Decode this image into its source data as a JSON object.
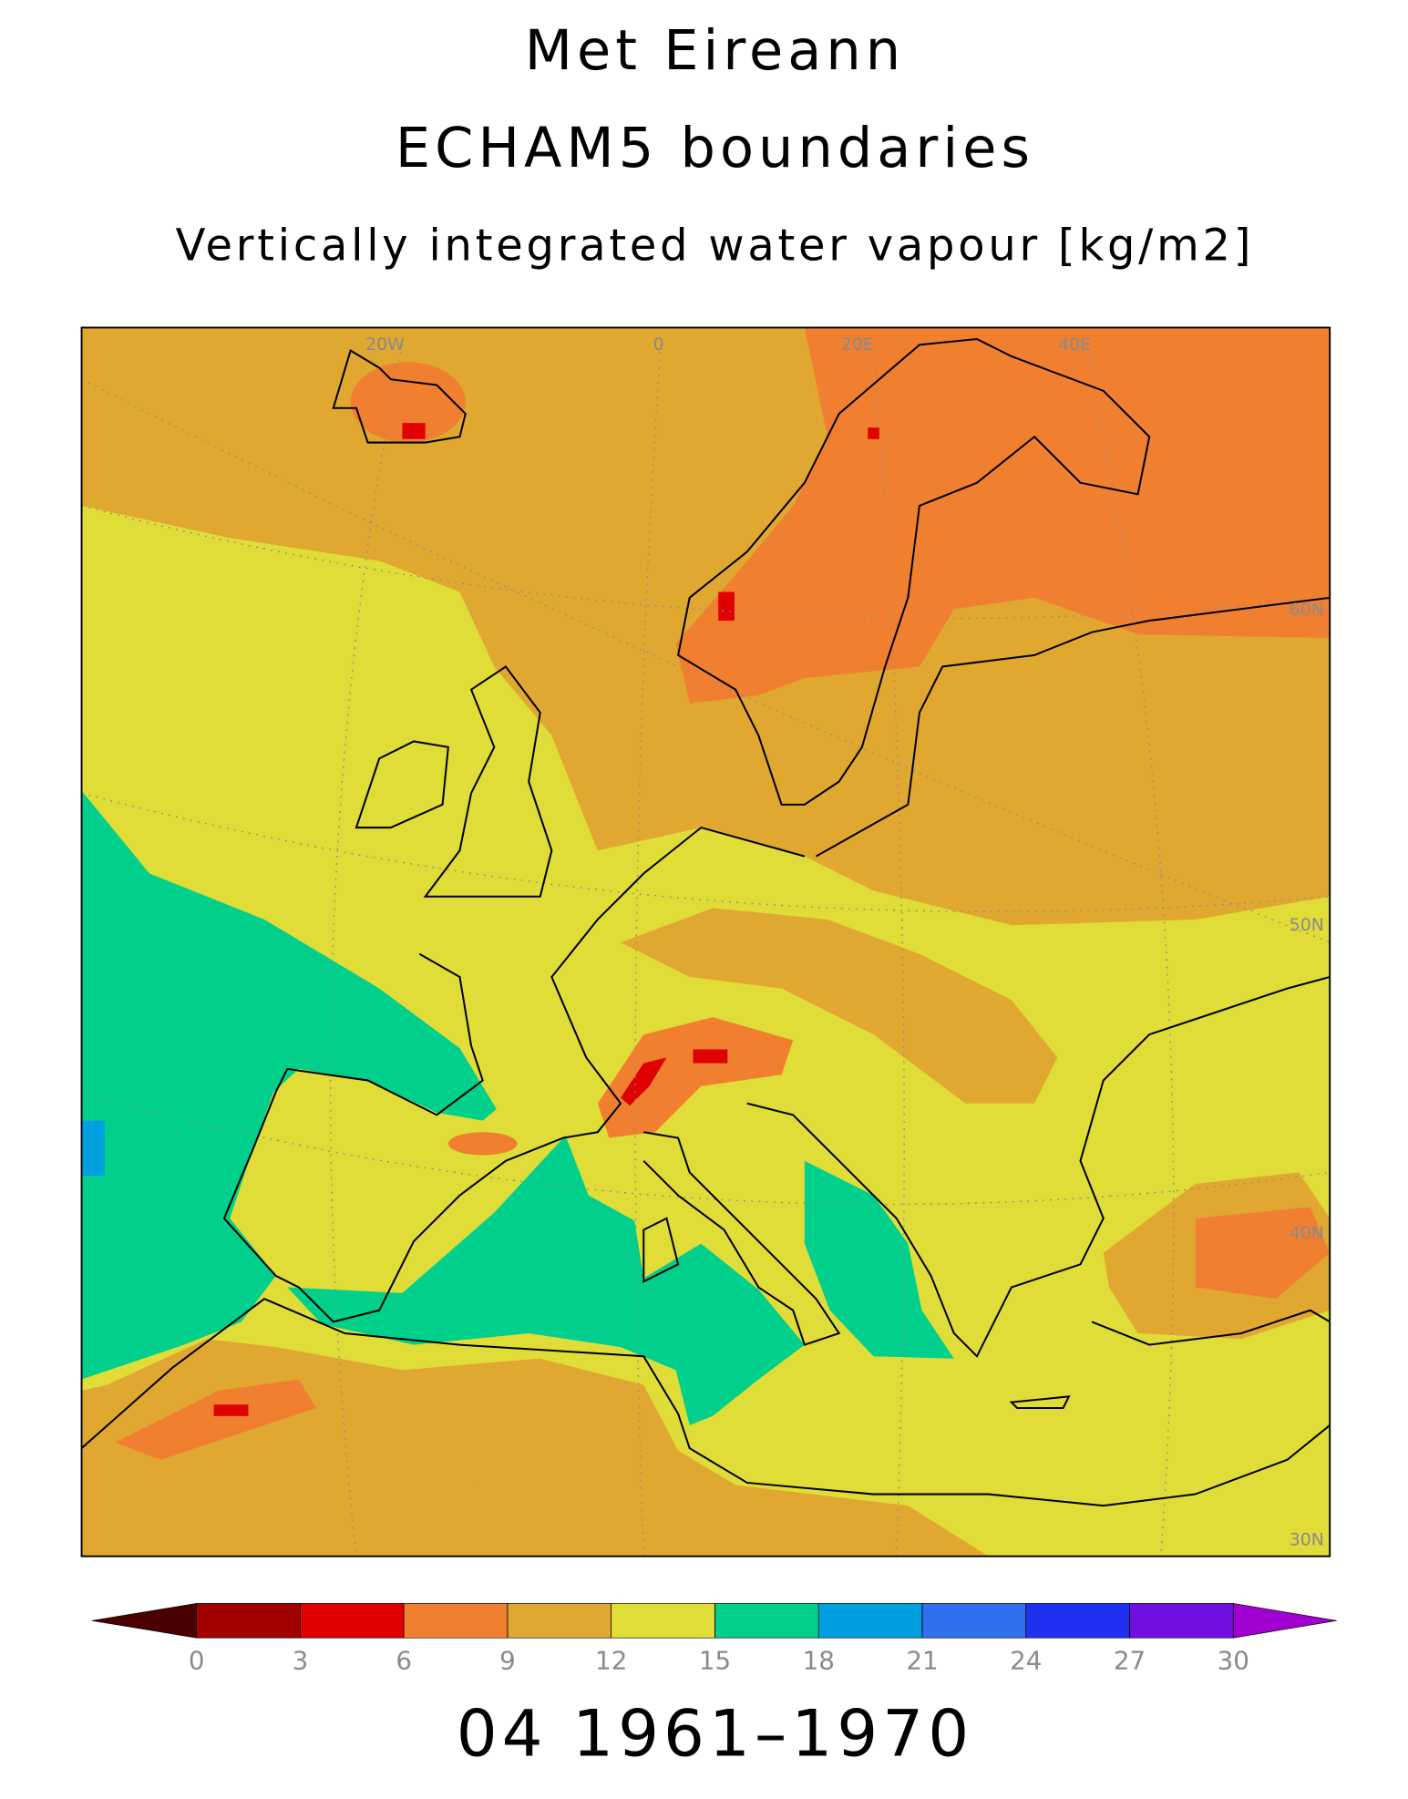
{
  "header": {
    "title": "Met Eireann",
    "subtitle": "ECHAM5 boundaries",
    "variable": "Vertically integrated water vapour [kg/m2]"
  },
  "map": {
    "lon_labels": [
      "20W",
      "0",
      "20E",
      "40E"
    ],
    "lat_labels": [
      "60N",
      "50N",
      "40N",
      "30N"
    ]
  },
  "colorbar": {
    "ticks": [
      0,
      3,
      6,
      9,
      12,
      15,
      18,
      21,
      24,
      27,
      30
    ],
    "colors": [
      "#4a0000",
      "#a00000",
      "#e00000",
      "#f08030",
      "#e0a830",
      "#e0dc38",
      "#00d08c",
      "#00a0e0",
      "#3070f0",
      "#2030f0",
      "#7010e0",
      "#a000d0"
    ]
  },
  "footer": {
    "period": "04 1961–1970"
  }
}
